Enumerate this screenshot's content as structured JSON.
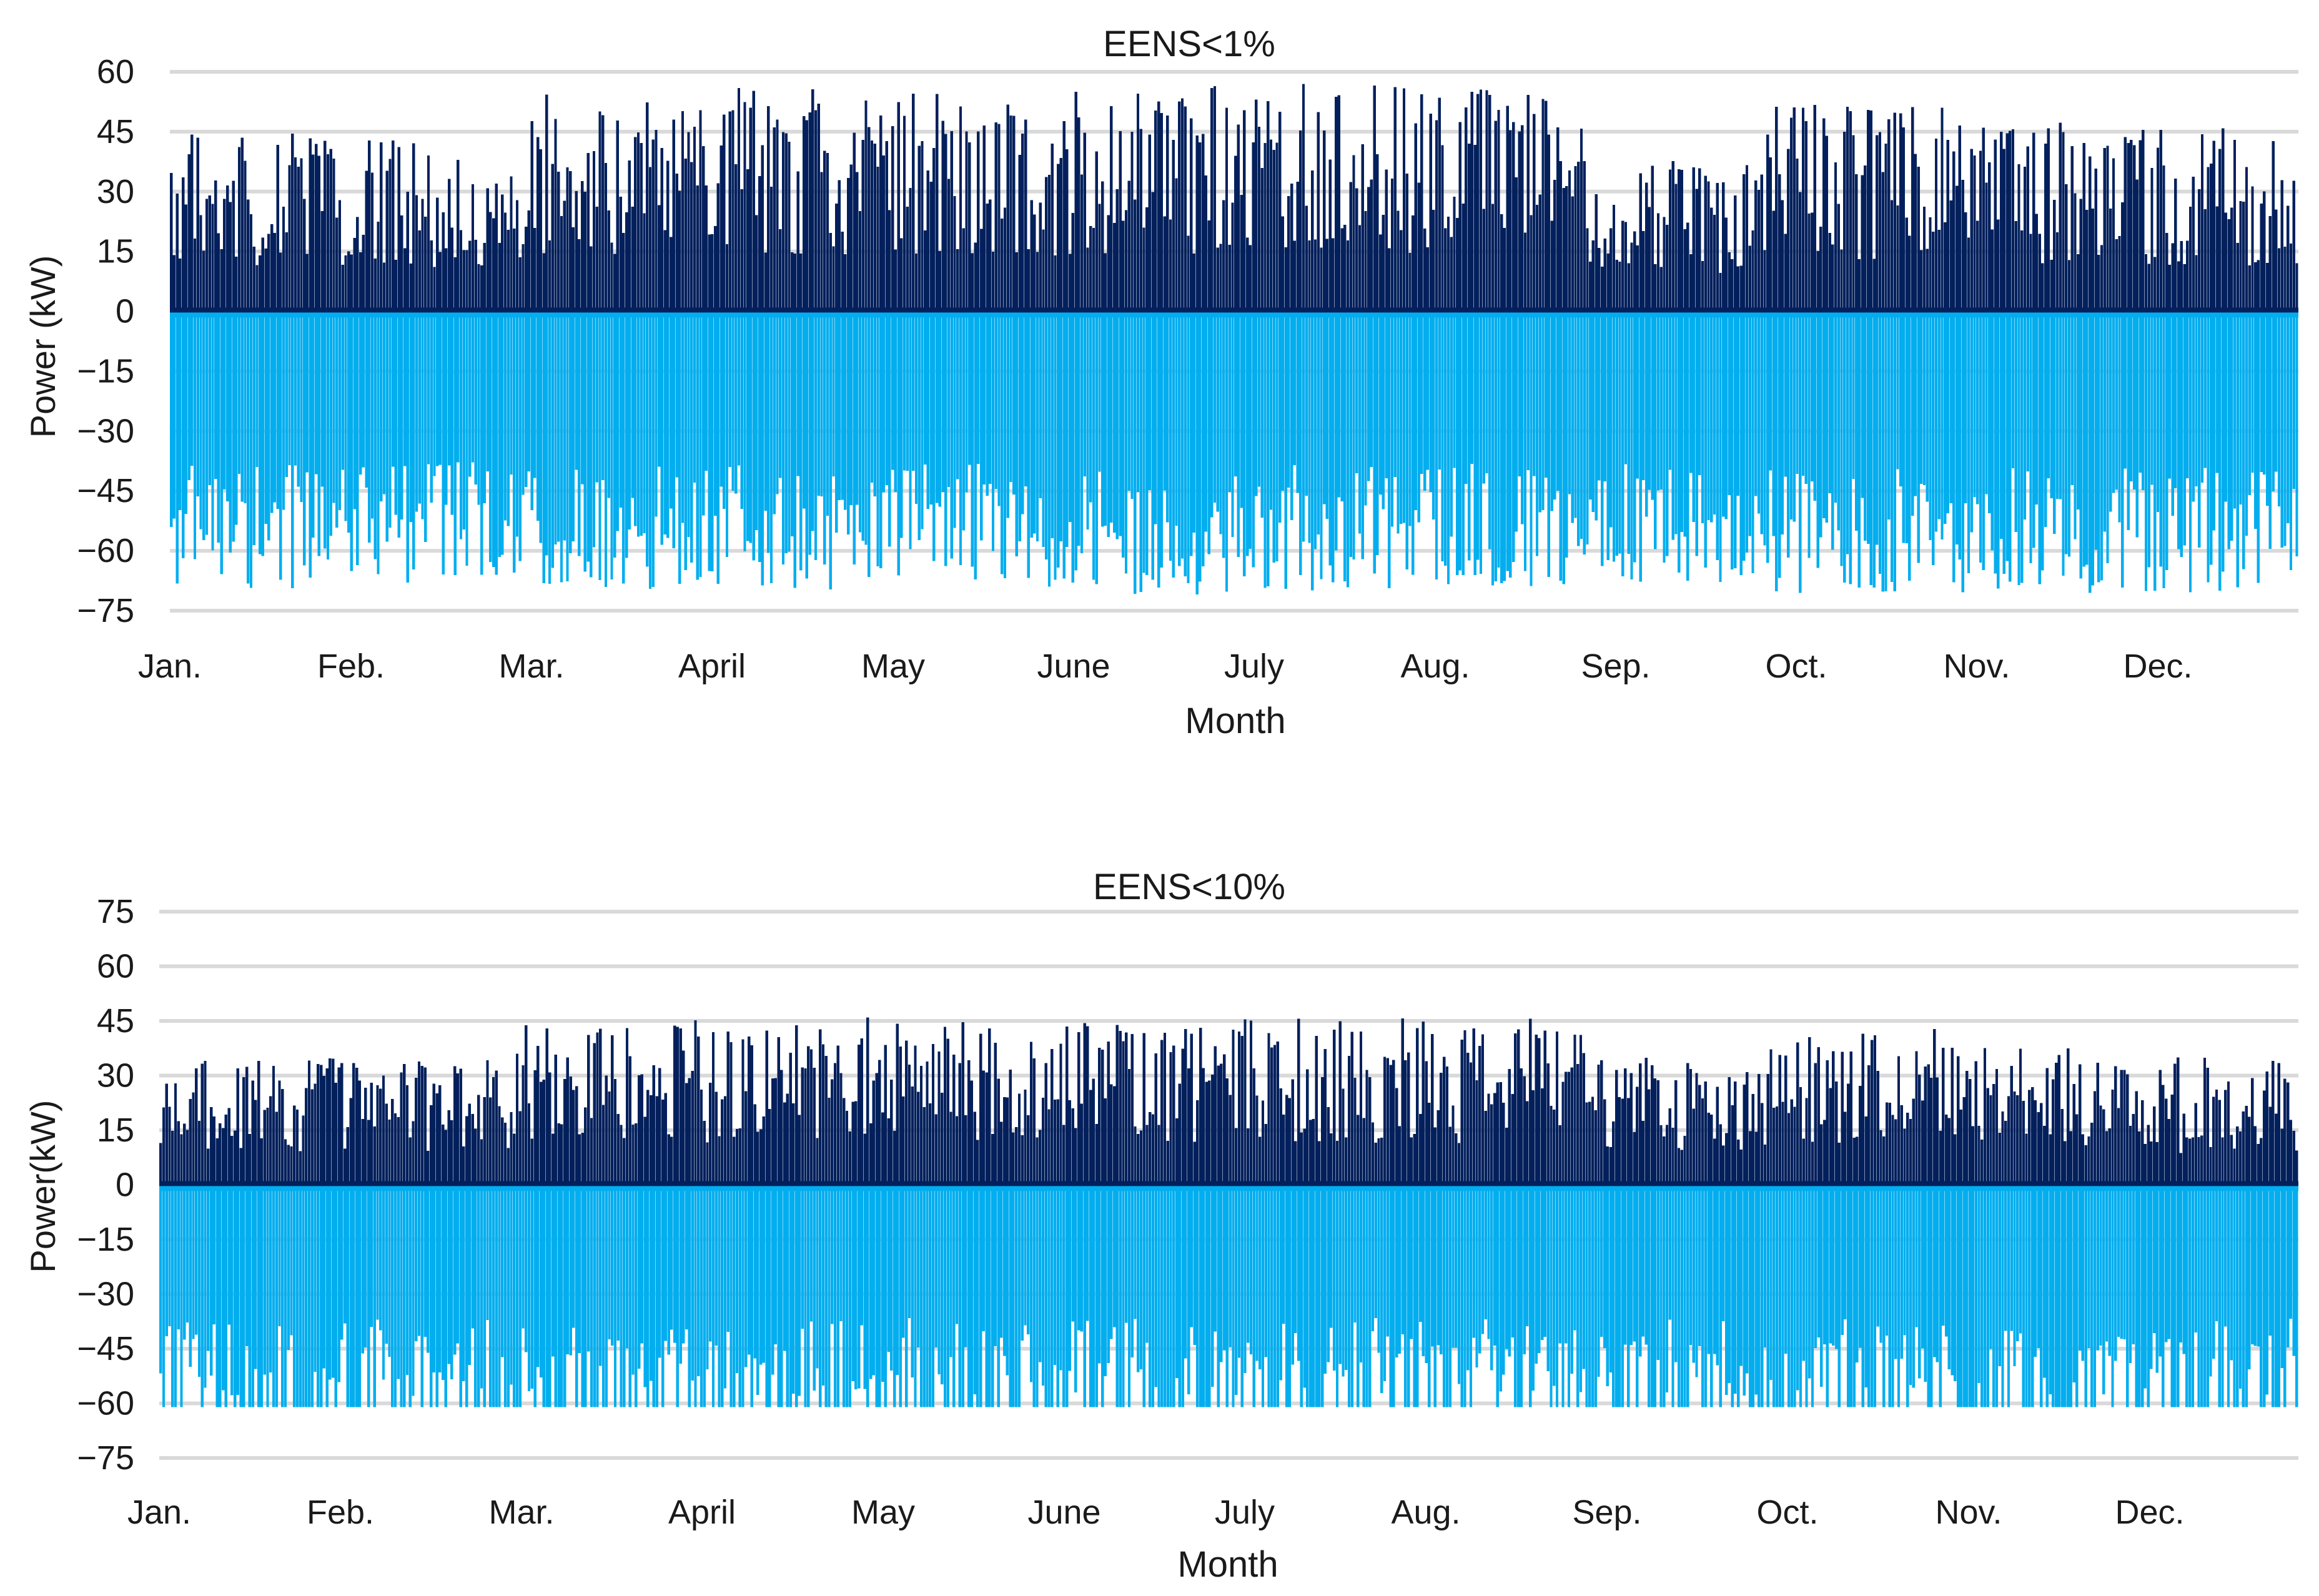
{
  "colors": {
    "series_positive": "#03205c",
    "series_negative": "#03aeef",
    "grid": "#d9d9d9",
    "text": "#1a1a1a"
  },
  "chart_data": [
    {
      "type": "bar",
      "title": "EENS<1%",
      "xlabel": "Month",
      "ylabel": "Power (kW)",
      "ylim": [
        -75,
        60
      ],
      "y_ticks": [
        "60",
        "45",
        "30",
        "15",
        "0",
        "−15",
        "−30",
        "−45",
        "−60",
        "−75"
      ],
      "y_tick_values": [
        60,
        45,
        30,
        15,
        0,
        -15,
        -30,
        -45,
        -60,
        -75
      ],
      "categories": [
        "Jan.",
        "Feb.",
        "Mar.",
        "April",
        "May",
        "June",
        "July",
        "Aug.",
        "Sep.",
        "Oct.",
        "Nov.",
        "Dec."
      ],
      "grid": true,
      "legend": "none",
      "series": [
        {
          "color": "#03205c",
          "values": [
            46,
            44,
            55,
            56,
            55,
            57,
            57,
            56,
            38,
            52,
            48,
            46
          ],
          "spread_note": ""
        },
        {
          "color": "#03aeef",
          "values": [
            -70,
            -68,
            -70,
            -70,
            -69,
            -71,
            -70,
            -69,
            -69,
            -71,
            -71,
            -71
          ]
        }
      ]
    },
    {
      "type": "bar",
      "title": "EENS<10%",
      "xlabel": "Month",
      "ylabel": "Power(kW)",
      "ylim": [
        -75,
        75
      ],
      "y_ticks": [
        "75",
        "60",
        "45",
        "30",
        "15",
        "0",
        "−15",
        "−30",
        "−45",
        "−60",
        "−75"
      ],
      "y_tick_values": [
        75,
        60,
        45,
        30,
        15,
        0,
        -15,
        -30,
        -45,
        -60,
        -75
      ],
      "categories": [
        "Jan.",
        "Feb.",
        "Mar.",
        "April",
        "May",
        "June",
        "July",
        "Aug.",
        "Sep.",
        "Oct.",
        "Nov.",
        "Dec."
      ],
      "grid": true,
      "legend": "none",
      "series": [
        {
          "color": "#03205c",
          "values": [
            35,
            36,
            44,
            46,
            45,
            45,
            46,
            46,
            36,
            43,
            38,
            35
          ]
        },
        {
          "color": "#03aeef",
          "values": [
            -61,
            -61,
            -61,
            -61,
            -61,
            -61,
            -61,
            -61,
            -61,
            -61,
            -61,
            -61
          ]
        }
      ]
    }
  ]
}
